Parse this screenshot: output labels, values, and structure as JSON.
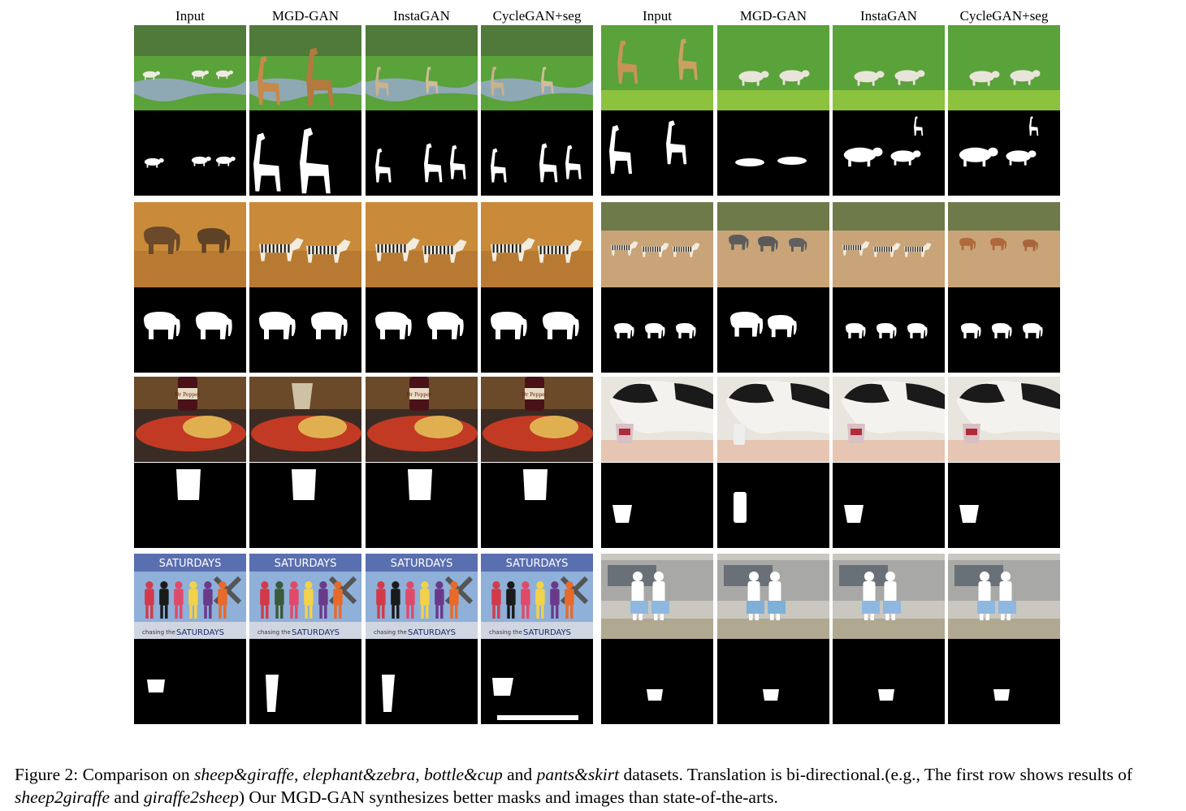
{
  "column_headers": [
    "Input",
    "MGD-GAN",
    "InstaGAN",
    "CycleGAN+seg",
    "Input",
    "MGD-GAN",
    "InstaGAN",
    "CycleGAN+seg"
  ],
  "overlay_texts": {
    "poster_title": "SATURDAYS",
    "poster_bottom_small": "chasing the",
    "poster_bottom_big": "SATURDAYS",
    "bottle_label": "Dr Pepper"
  },
  "caption": {
    "label": "Figure 2:",
    "t1": " Comparison on ",
    "d1": "sheep&giraffe",
    "t2": ", ",
    "d2": "elephant&zebra",
    "t3": ", ",
    "d3": "bottle&cup",
    "t4": " and ",
    "d4": "pants&skirt",
    "t5": " datasets.  Translation is bi-directional.(e.g., The first row shows results of ",
    "d5": "sheep2giraffe",
    "t6": " and ",
    "d6": "giraffe2sheep",
    "t7": ")  Our MGD-GAN synthesizes better masks and images than state-of-the-arts."
  },
  "colors": {
    "mask_bg": "#000000",
    "mask_fg": "#ffffff",
    "grass": "#5aa23a",
    "desert": "#c98a3a",
    "savanna": "#c9a478",
    "food_bg": "#3a2c24",
    "cat_wall": "#e8e4de"
  }
}
